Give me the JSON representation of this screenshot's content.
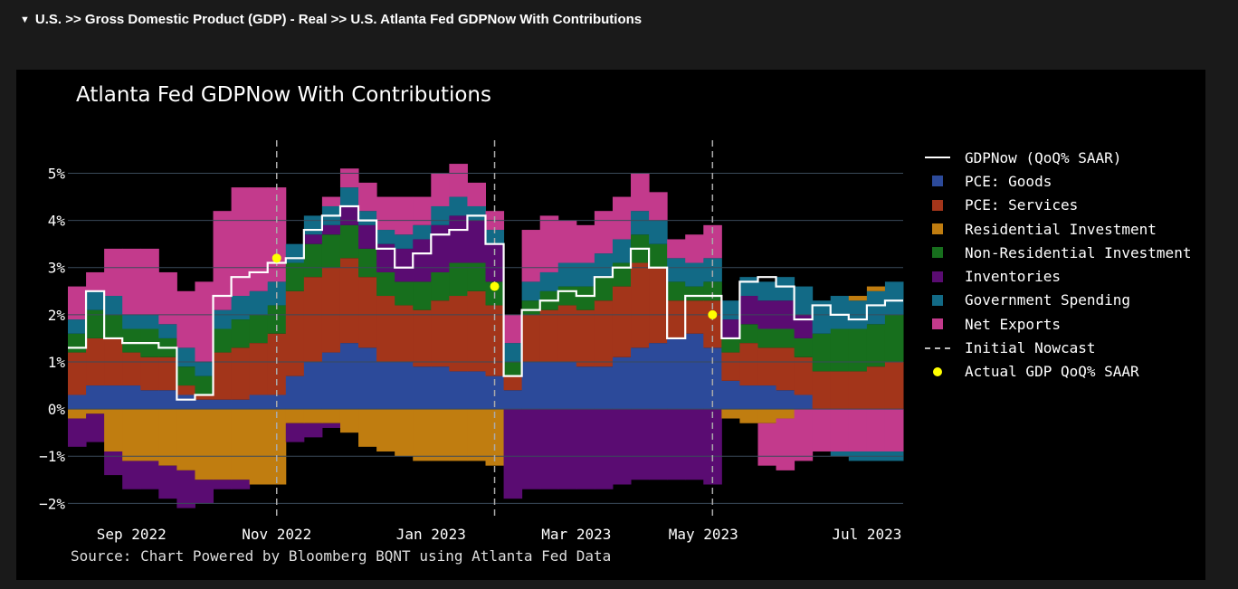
{
  "breadcrumb": {
    "caret": "▼",
    "text": "U.S. >> Gross Domestic Product (GDP) - Real >> U.S. Atlanta Fed GDPNow With Contributions"
  },
  "source": "Source: Chart Powered by Bloomberg BQNT using Atlanta Fed Data",
  "legend": [
    {
      "label": "GDPNow (QoQ% SAAR)",
      "kind": "line",
      "color": "#ffffff"
    },
    {
      "label": "PCE: Goods",
      "kind": "box",
      "color": "#2c4a9a"
    },
    {
      "label": "PCE: Services",
      "kind": "box",
      "color": "#a3351a"
    },
    {
      "label": "Residential Investment",
      "kind": "box",
      "color": "#c07d10"
    },
    {
      "label": "Non-Residential Investment",
      "kind": "box",
      "color": "#176f1d"
    },
    {
      "label": "Inventories",
      "kind": "box",
      "color": "#5a0c72"
    },
    {
      "label": "Government Spending",
      "kind": "box",
      "color": "#126a86"
    },
    {
      "label": "Net Exports",
      "kind": "box",
      "color": "#c33a8c"
    },
    {
      "label": "Initial Nowcast",
      "kind": "dash",
      "color": "#bbbbbb"
    },
    {
      "label": "Actual GDP QoQ% SAAR",
      "kind": "dot",
      "color": "#ffff00"
    }
  ],
  "chart_data": {
    "type": "area",
    "title": "Atlanta Fed GDPNow With Contributions",
    "ylim": [
      -2.3,
      5.7
    ],
    "yticks": [
      5,
      4,
      3,
      2,
      1,
      0,
      -1,
      -2
    ],
    "ytick_labels": [
      "5%",
      "4%",
      "3%",
      "2%",
      "1%",
      "0%",
      "−1%",
      "−2%"
    ],
    "xlim": [
      0,
      46
    ],
    "xticks": [
      3.5,
      11.5,
      20,
      28,
      35,
      44
    ],
    "xtick_labels": [
      "Sep 2022",
      "Nov 2022",
      "Jan 2023",
      "Mar 2023",
      "May 2023",
      "Jul 2023"
    ],
    "initial_nowcasts": [
      11.5,
      23.5,
      35.5
    ],
    "actual_gdp": [
      {
        "x": 11.5,
        "y": 3.2
      },
      {
        "x": 23.5,
        "y": 2.6
      },
      {
        "x": 35.5,
        "y": 2.0
      }
    ],
    "gdpnow": [
      1.3,
      2.5,
      1.5,
      1.4,
      1.4,
      1.3,
      0.2,
      0.3,
      2.4,
      2.8,
      2.9,
      3.1,
      3.2,
      3.8,
      4.1,
      4.3,
      4.0,
      3.4,
      3.0,
      3.3,
      3.7,
      3.8,
      4.1,
      3.5,
      0.7,
      2.1,
      2.3,
      2.5,
      2.4,
      2.8,
      3.0,
      3.4,
      3.0,
      1.5,
      2.4,
      2.4,
      1.5,
      2.7,
      2.8,
      2.6,
      1.9,
      2.2,
      2.0,
      1.9,
      2.2,
      2.3
    ],
    "categories": [
      "PCE: Goods",
      "PCE: Services",
      "Residential Investment",
      "Non-Residential Investment",
      "Inventories",
      "Government Spending",
      "Net Exports"
    ],
    "pos_series": [
      {
        "name": "PCE: Goods",
        "values": [
          0.3,
          0.5,
          0.5,
          0.5,
          0.4,
          0.4,
          0.3,
          0.2,
          0.2,
          0.2,
          0.3,
          0.3,
          0.7,
          1.0,
          1.2,
          1.4,
          1.3,
          1.0,
          1.0,
          0.9,
          0.9,
          0.8,
          0.8,
          0.7,
          0.4,
          1.0,
          1.0,
          1.0,
          0.9,
          0.9,
          1.1,
          1.3,
          1.4,
          1.5,
          1.6,
          1.3,
          0.6,
          0.5,
          0.5,
          0.4,
          0.3,
          0.0,
          0.0,
          0.0,
          0.0,
          0.0
        ]
      },
      {
        "name": "PCE: Services",
        "values": [
          0.9,
          1.0,
          1.0,
          0.7,
          0.7,
          0.7,
          0.2,
          0.1,
          1.0,
          1.1,
          1.1,
          1.3,
          1.8,
          1.8,
          1.8,
          1.8,
          1.5,
          1.4,
          1.2,
          1.2,
          1.4,
          1.6,
          1.7,
          1.5,
          0.3,
          1.0,
          1.1,
          1.2,
          1.2,
          1.4,
          1.5,
          1.8,
          1.6,
          0.8,
          0.7,
          1.0,
          0.6,
          0.9,
          0.8,
          0.9,
          0.8,
          0.8,
          0.8,
          0.8,
          0.9,
          1.0
        ]
      },
      {
        "name": "Non-Residential Investment",
        "values": [
          0.4,
          0.6,
          0.5,
          0.5,
          0.6,
          0.4,
          0.4,
          0.4,
          0.5,
          0.6,
          0.6,
          0.6,
          0.6,
          0.7,
          0.7,
          0.7,
          0.6,
          0.5,
          0.5,
          0.6,
          0.6,
          0.7,
          0.6,
          0.5,
          0.3,
          0.3,
          0.4,
          0.4,
          0.5,
          0.5,
          0.5,
          0.6,
          0.5,
          0.4,
          0.3,
          0.4,
          0.3,
          0.4,
          0.4,
          0.4,
          0.4,
          0.8,
          0.9,
          0.9,
          0.9,
          1.0
        ]
      },
      {
        "name": "Inventories",
        "values": [
          0.0,
          0.0,
          0.0,
          0.0,
          0.0,
          0.0,
          0.0,
          0.0,
          0.0,
          0.0,
          0.0,
          0.0,
          0.0,
          0.2,
          0.2,
          0.4,
          0.5,
          0.6,
          0.7,
          0.9,
          1.0,
          1.0,
          0.9,
          0.8,
          0.0,
          0.0,
          0.0,
          0.0,
          0.0,
          0.0,
          0.0,
          0.0,
          0.0,
          0.0,
          0.0,
          0.0,
          0.4,
          0.6,
          0.6,
          0.6,
          0.5,
          0.0,
          0.0,
          0.0,
          0.0,
          0.0
        ]
      },
      {
        "name": "Government Spending",
        "values": [
          0.3,
          0.4,
          0.4,
          0.3,
          0.3,
          0.3,
          0.4,
          0.3,
          0.4,
          0.5,
          0.5,
          0.5,
          0.4,
          0.4,
          0.4,
          0.4,
          0.3,
          0.3,
          0.3,
          0.3,
          0.4,
          0.4,
          0.3,
          0.3,
          0.4,
          0.4,
          0.4,
          0.5,
          0.5,
          0.5,
          0.5,
          0.5,
          0.5,
          0.5,
          0.5,
          0.5,
          0.4,
          0.4,
          0.4,
          0.5,
          0.6,
          0.7,
          0.7,
          0.6,
          0.7,
          0.7
        ]
      },
      {
        "name": "Residential Investment",
        "values": [
          0.0,
          0.0,
          0.0,
          0.0,
          0.0,
          0.0,
          0.0,
          0.0,
          0.0,
          0.0,
          0.0,
          0.0,
          0.0,
          0.0,
          0.0,
          0.0,
          0.0,
          0.0,
          0.0,
          0.0,
          0.0,
          0.0,
          0.0,
          0.0,
          0.0,
          0.0,
          0.0,
          0.0,
          0.0,
          0.0,
          0.0,
          0.0,
          0.0,
          0.0,
          0.0,
          0.0,
          0.0,
          0.0,
          0.0,
          0.0,
          0.0,
          0.0,
          0.0,
          0.1,
          0.1,
          0.0
        ]
      },
      {
        "name": "Net Exports",
        "values": [
          0.7,
          0.4,
          1.0,
          1.4,
          1.4,
          1.1,
          1.2,
          1.7,
          2.1,
          2.3,
          2.2,
          2.0,
          0.0,
          0.0,
          0.2,
          0.4,
          0.6,
          0.7,
          0.8,
          0.6,
          0.7,
          0.7,
          0.5,
          0.4,
          0.6,
          1.1,
          1.2,
          0.9,
          0.8,
          0.9,
          0.9,
          0.8,
          0.6,
          0.4,
          0.6,
          0.7,
          0.0,
          0.0,
          0.0,
          0.0,
          0.0,
          0.0,
          0.0,
          0.0,
          0.0,
          0.0
        ]
      }
    ],
    "neg_series": [
      {
        "name": "Residential Investment",
        "values": [
          -0.2,
          -0.1,
          -0.9,
          -1.1,
          -1.1,
          -1.2,
          -1.3,
          -1.5,
          -1.5,
          -1.5,
          -1.6,
          -1.6,
          -0.3,
          -0.3,
          -0.3,
          -0.5,
          -0.8,
          -0.9,
          -1.0,
          -1.1,
          -1.1,
          -1.1,
          -1.1,
          -1.2,
          0.0,
          0.0,
          0.0,
          0.0,
          0.0,
          0.0,
          0.0,
          0.0,
          0.0,
          0.0,
          0.0,
          0.0,
          -0.2,
          -0.3,
          -0.3,
          -0.2,
          0.0,
          0.0,
          0.0,
          0.0,
          0.0,
          0.0
        ]
      },
      {
        "name": "Inventories",
        "values": [
          -0.6,
          -0.6,
          -0.5,
          -0.6,
          -0.6,
          -0.7,
          -0.8,
          -0.5,
          -0.2,
          -0.2,
          0.0,
          0.0,
          -0.4,
          -0.3,
          -0.1,
          0.0,
          0.0,
          0.0,
          0.0,
          0.0,
          0.0,
          0.0,
          0.0,
          0.0,
          -1.9,
          -1.7,
          -1.7,
          -1.7,
          -1.7,
          -1.7,
          -1.6,
          -1.5,
          -1.5,
          -1.5,
          -1.5,
          -1.6,
          0.0,
          0.0,
          0.0,
          0.0,
          0.0,
          0.0,
          0.0,
          0.0,
          0.0,
          0.0
        ]
      },
      {
        "name": "Net Exports",
        "values": [
          0.0,
          0.0,
          0.0,
          0.0,
          0.0,
          0.0,
          0.0,
          0.0,
          0.0,
          0.0,
          0.0,
          0.0,
          0.0,
          0.0,
          0.0,
          0.0,
          0.0,
          0.0,
          0.0,
          0.0,
          0.0,
          0.0,
          0.0,
          0.0,
          0.0,
          0.0,
          0.0,
          0.0,
          0.0,
          0.0,
          0.0,
          0.0,
          0.0,
          0.0,
          0.0,
          0.0,
          0.0,
          0.0,
          -0.9,
          -1.1,
          -1.1,
          -0.9,
          -0.9,
          -0.9,
          -0.9,
          -0.9
        ]
      },
      {
        "name": "Government Spending",
        "values": [
          0.0,
          0.0,
          0.0,
          0.0,
          0.0,
          0.0,
          0.0,
          0.0,
          0.0,
          0.0,
          0.0,
          0.0,
          0.0,
          0.0,
          0.0,
          0.0,
          0.0,
          0.0,
          0.0,
          0.0,
          0.0,
          0.0,
          0.0,
          0.0,
          0.0,
          0.0,
          0.0,
          0.0,
          0.0,
          0.0,
          0.0,
          0.0,
          0.0,
          0.0,
          0.0,
          0.0,
          0.0,
          0.0,
          0.0,
          0.0,
          0.0,
          0.0,
          -0.1,
          -0.2,
          -0.2,
          -0.2
        ]
      }
    ]
  }
}
